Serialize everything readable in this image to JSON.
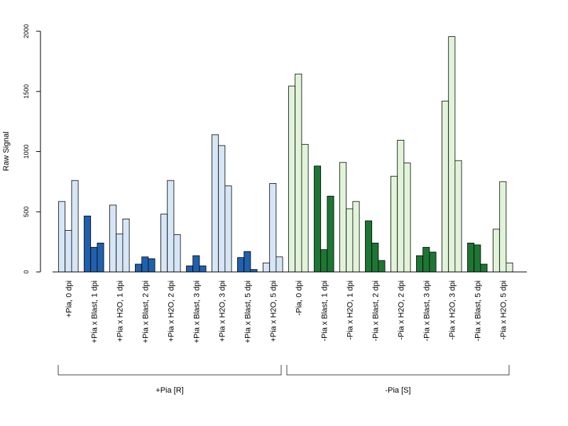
{
  "chart_data": {
    "type": "bar",
    "ylabel": "Raw Signal",
    "ylim": [
      0,
      2000
    ],
    "yticks": [
      "0",
      "500",
      "1000",
      "1500",
      "2000"
    ],
    "grid": false,
    "categories": [
      "+Pia, 0 dpi",
      "+Pia x Blast, 1 dpi",
      "+Pia x H2O, 1 dpi",
      "+Pia x Blast, 2 dpi",
      "+Pia x H2O, 2 dpi",
      "+Pia x Blast, 3 dpi",
      "+Pia x H2O, 3 dpi",
      "+Pia x Blast, 5 dpi",
      "+Pia x H2O, 5 dpi",
      "-Pia, 0 dpi",
      "-Pia x Blast, 1 dpi",
      "-Pia x H2O, 1 dpi",
      "-Pia x Blast, 2 dpi",
      "-Pia x H2O, 2 dpi",
      "-Pia x Blast, 3 dpi",
      "-Pia x H2O, 3 dpi",
      "-Pia x Blast, 5 dpi",
      "-Pia x H2O, 5 dpi"
    ],
    "replicate_values": [
      [
        585,
        345,
        760
      ],
      [
        465,
        205,
        240
      ],
      [
        555,
        315,
        440
      ],
      [
        65,
        125,
        110
      ],
      [
        480,
        760,
        310
      ],
      [
        50,
        135,
        50
      ],
      [
        1140,
        1050,
        715
      ],
      [
        120,
        170,
        20
      ],
      [
        75,
        735,
        125
      ],
      [
        1545,
        1645,
        1060
      ],
      [
        880,
        185,
        630
      ],
      [
        910,
        525,
        585
      ],
      [
        425,
        240,
        95
      ],
      [
        795,
        1095,
        905
      ],
      [
        135,
        205,
        165
      ],
      [
        1420,
        1955,
        925
      ],
      [
        240,
        225,
        65
      ],
      [
        355,
        750,
        75
      ]
    ],
    "bar_colors": [
      "#d6e6f6",
      "#2060ad",
      "#d6e6f6",
      "#2060ad",
      "#d6e6f6",
      "#2060ad",
      "#d6e6f6",
      "#2060ad",
      "#d6e6f6",
      "#e1f4da",
      "#1e7634",
      "#e1f4da",
      "#1e7634",
      "#e1f4da",
      "#1e7634",
      "#e1f4da",
      "#1e7634",
      "#e1f4da"
    ],
    "groups": [
      {
        "label": "+Pia [R]",
        "first_category": 0,
        "last_category": 8
      },
      {
        "label": "-Pia [S]",
        "first_category": 9,
        "last_category": 17
      }
    ]
  }
}
